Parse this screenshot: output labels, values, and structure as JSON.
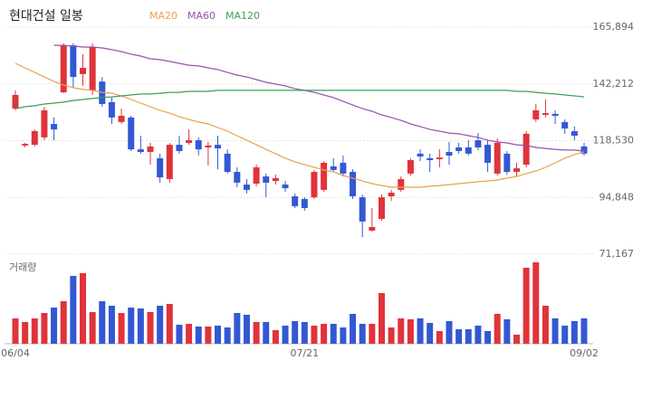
{
  "chart_data": {
    "type": "candlestick",
    "title": "현대건설 일봉",
    "categories": [
      "06/04",
      null,
      null,
      null,
      null,
      null,
      null,
      null,
      null,
      null,
      null,
      null,
      null,
      null,
      null,
      null,
      null,
      null,
      null,
      null,
      null,
      null,
      null,
      null,
      null,
      null,
      null,
      null,
      null,
      null,
      "07/21",
      null,
      null,
      null,
      null,
      null,
      null,
      null,
      null,
      null,
      null,
      null,
      null,
      null,
      null,
      null,
      null,
      null,
      null,
      null,
      null,
      null,
      null,
      null,
      null,
      null,
      null,
      null,
      null,
      "09/02"
    ],
    "open": [
      131900,
      116500,
      116800,
      119900,
      125500,
      138700,
      158300,
      146300,
      139500,
      143200,
      134600,
      126300,
      128200,
      114900,
      113800,
      111200,
      102500,
      116800,
      117600,
      118700,
      115700,
      116800,
      113100,
      105500,
      100200,
      100600,
      103600,
      101700,
      100200,
      95300,
      94200,
      94900,
      98000,
      107800,
      109300,
      105500,
      94900,
      81000,
      85900,
      95300,
      98000,
      104800,
      113100,
      111200,
      110800,
      113800,
      115700,
      115700,
      118700,
      116800,
      104800,
      113100,
      105500,
      108500,
      127400,
      129300,
      129700,
      126300,
      122500,
      116100
    ],
    "high": [
      139500,
      117600,
      123200,
      132700,
      128200,
      159100,
      159100,
      154600,
      159100,
      145100,
      136500,
      131900,
      128900,
      120600,
      117600,
      113100,
      117600,
      120600,
      123200,
      119900,
      118000,
      120600,
      114900,
      107400,
      102500,
      108500,
      104800,
      104400,
      101700,
      96500,
      94900,
      106300,
      110000,
      111200,
      112300,
      106600,
      96100,
      90400,
      96100,
      98000,
      103600,
      111200,
      114900,
      113100,
      114900,
      118000,
      117600,
      118700,
      121700,
      118700,
      119500,
      114200,
      109300,
      122500,
      133800,
      135700,
      131200,
      127400,
      124400,
      117600
    ],
    "low": [
      131200,
      115700,
      116100,
      118700,
      118700,
      138300,
      140600,
      141400,
      137600,
      132700,
      125500,
      125500,
      114200,
      113100,
      108500,
      101000,
      101000,
      113100,
      116800,
      112300,
      108200,
      106600,
      104800,
      99100,
      96500,
      99500,
      94900,
      100200,
      97200,
      90400,
      89300,
      94200,
      97200,
      105500,
      103600,
      94200,
      78300,
      80600,
      85100,
      93400,
      97200,
      104000,
      110000,
      105500,
      107400,
      108500,
      113100,
      112300,
      114600,
      105500,
      104000,
      104400,
      103600,
      107400,
      126300,
      128200,
      125500,
      121400,
      118700,
      112300
    ],
    "close": [
      137600,
      117200,
      122500,
      131200,
      123200,
      158300,
      145100,
      148900,
      157600,
      133800,
      128200,
      128900,
      114900,
      113800,
      116100,
      103200,
      116800,
      114200,
      118700,
      114900,
      116500,
      115300,
      105500,
      101000,
      98000,
      107400,
      101000,
      102900,
      98700,
      91200,
      90400,
      105500,
      109300,
      106300,
      104800,
      95300,
      84800,
      82500,
      94900,
      96800,
      102500,
      110400,
      111900,
      110400,
      111500,
      112300,
      114200,
      113100,
      115700,
      109300,
      117600,
      105500,
      107000,
      121400,
      131200,
      130000,
      128900,
      123600,
      120600,
      113100
    ],
    "up_color": "#e0333a",
    "down_color": "#3358d4",
    "ylim": [
      71167,
      165894
    ],
    "yticks": [
      {
        "value": 71167,
        "label": "71,167"
      },
      {
        "value": 94848,
        "label": "94,848"
      },
      {
        "value": 118530,
        "label": "118,530"
      },
      {
        "value": 142212,
        "label": "142,212"
      },
      {
        "value": 165894,
        "label": "165,894"
      }
    ],
    "grid": true,
    "series": [
      {
        "name": "MA20",
        "color": "#e8a050",
        "values": [
          150800,
          148900,
          147000,
          145100,
          143200,
          141700,
          140600,
          139900,
          139500,
          138700,
          138300,
          137200,
          135700,
          134200,
          132700,
          131200,
          130000,
          128500,
          127400,
          126300,
          125500,
          124000,
          122500,
          120600,
          118700,
          116800,
          114900,
          113100,
          111200,
          109700,
          108500,
          107400,
          106300,
          105500,
          104000,
          102900,
          101700,
          100600,
          99800,
          99100,
          99100,
          99100,
          99100,
          99500,
          99800,
          100200,
          100600,
          101000,
          101400,
          101700,
          102100,
          102900,
          103600,
          104800,
          105900,
          107400,
          109300,
          111200,
          112700,
          113800
        ]
      },
      {
        "name": "MA60",
        "color": "#9b4fae",
        "values": [
          null,
          null,
          null,
          null,
          158300,
          158300,
          158000,
          157600,
          157600,
          157200,
          156500,
          155700,
          154600,
          153800,
          152700,
          152300,
          151600,
          150800,
          150000,
          149700,
          148900,
          148200,
          147000,
          145900,
          145100,
          144000,
          142900,
          142100,
          141400,
          140200,
          139500,
          138700,
          137600,
          136500,
          134900,
          133400,
          131900,
          130800,
          129300,
          128200,
          127000,
          125500,
          124400,
          123200,
          122500,
          121700,
          121400,
          120600,
          119900,
          118700,
          118000,
          117600,
          116800,
          116500,
          115700,
          115300,
          114900,
          114600,
          114600,
          114200
        ]
      },
      {
        "name": "MA120",
        "color": "#3aa05a",
        "values": [
          131900,
          132700,
          133100,
          133800,
          134200,
          134600,
          135300,
          135700,
          136100,
          136500,
          136800,
          137200,
          137600,
          138000,
          138000,
          138300,
          138700,
          138700,
          139100,
          139100,
          139100,
          139500,
          139500,
          139500,
          139500,
          139500,
          139500,
          139500,
          139500,
          139500,
          139500,
          139500,
          139500,
          139500,
          139500,
          139500,
          139500,
          139500,
          139500,
          139500,
          139500,
          139500,
          139500,
          139500,
          139500,
          139500,
          139500,
          139500,
          139500,
          139500,
          139500,
          139500,
          139100,
          139100,
          138700,
          138300,
          138000,
          137600,
          137200,
          136800
        ]
      }
    ],
    "volume": {
      "label": "거래량",
      "ylim": [
        0,
        90
      ],
      "values": [
        28,
        24,
        28,
        34,
        40,
        47,
        75,
        78,
        35,
        47,
        42,
        34,
        40,
        39,
        35,
        42,
        44,
        21,
        22,
        19,
        19,
        20,
        18,
        34,
        32,
        24,
        24,
        15,
        20,
        25,
        24,
        20,
        22,
        22,
        18,
        33,
        22,
        22,
        56,
        18,
        28,
        27,
        28,
        23,
        14,
        25,
        16,
        16,
        20,
        14,
        33,
        27,
        10,
        84,
        90,
        42,
        28,
        20,
        25,
        28
      ]
    }
  }
}
